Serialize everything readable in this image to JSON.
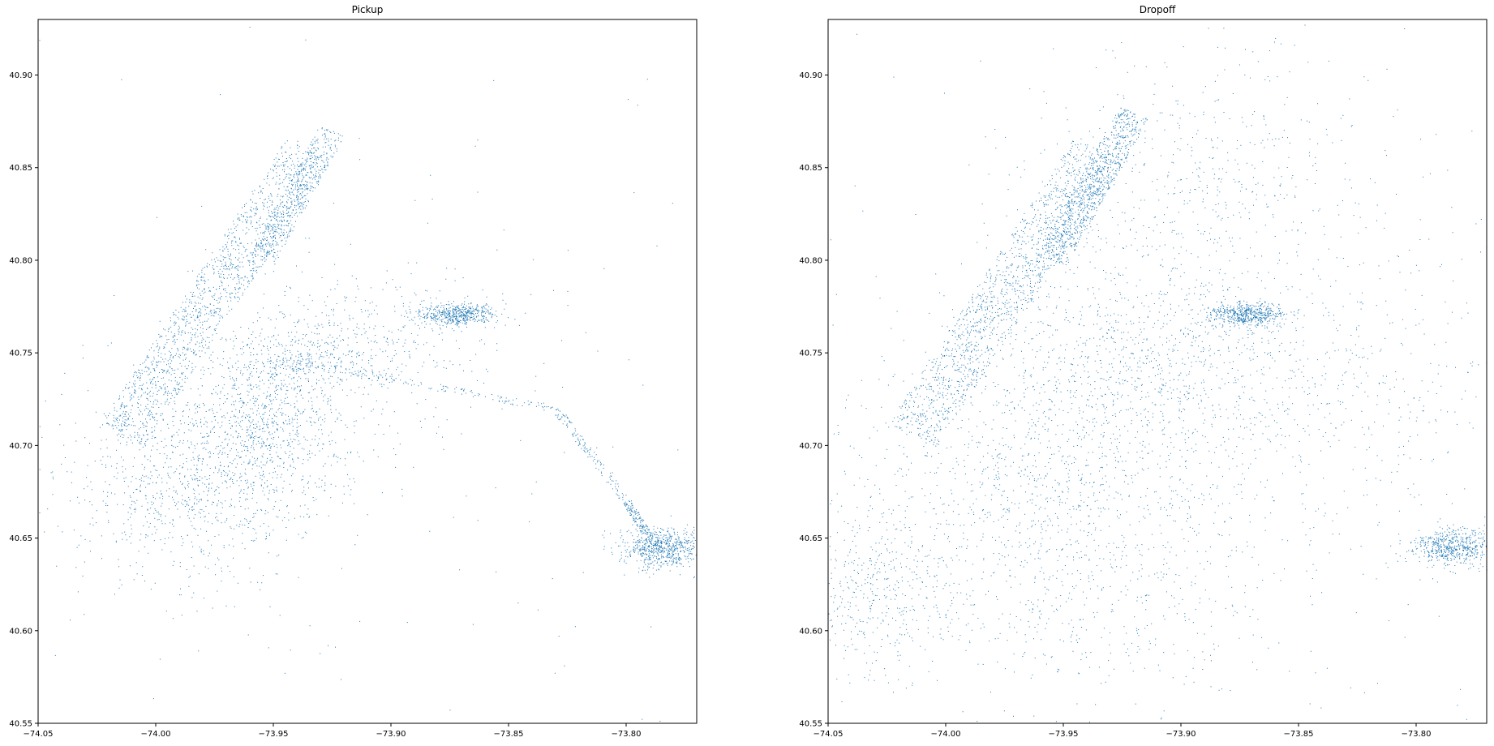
{
  "figure": {
    "background": "#ffffff",
    "point_color": "#1f77b4"
  },
  "chart_data": [
    {
      "type": "scatter",
      "title": "Pickup",
      "xlabel": "",
      "ylabel": "",
      "xlim": [
        -74.05,
        -73.77
      ],
      "ylim": [
        40.55,
        40.93
      ],
      "x_ticks": [
        "−74.05",
        "−74.00",
        "−73.95",
        "−73.90",
        "−73.85",
        "−73.80"
      ],
      "y_ticks": [
        "40.55",
        "40.60",
        "40.65",
        "40.70",
        "40.75",
        "40.80",
        "40.85",
        "40.90"
      ],
      "grid": false,
      "marker": "pixel",
      "series": [
        {
          "color": "#1f77b4",
          "clusters": [
            {
              "region": "manhattan",
              "line": [
                [
                  -74.015,
                  40.705
                ],
                [
                  -73.935,
                  40.86
                ]
              ],
              "halfwidth": 0.011,
              "density": 1.0
            },
            {
              "region": "upper_manhattan",
              "line": [
                [
                  -73.955,
                  40.8
                ],
                [
                  -73.925,
                  40.87
                ]
              ],
              "halfwidth": 0.006,
              "density": 0.35
            },
            {
              "region": "brooklyn_downtown",
              "center": [
                -73.97,
                40.69
              ],
              "spread": [
                0.03,
                0.02
              ],
              "density": 0.5
            },
            {
              "region": "brooklyn_southwest",
              "center": [
                -73.99,
                40.665
              ],
              "spread": [
                0.025,
                0.025
              ],
              "density": 0.3
            },
            {
              "region": "queens_lic",
              "center": [
                -73.94,
                40.745
              ],
              "spread": [
                0.02,
                0.012
              ],
              "density": 0.35
            },
            {
              "region": "queens_astoria",
              "center": [
                -73.915,
                40.76
              ],
              "spread": [
                0.03,
                0.02
              ],
              "density": 0.25
            },
            {
              "region": "williamsburg",
              "center": [
                -73.955,
                40.715
              ],
              "spread": [
                0.015,
                0.015
              ],
              "density": 0.35
            },
            {
              "region": "laguardia",
              "center": [
                -73.872,
                40.771
              ],
              "spread": [
                0.008,
                0.003
              ],
              "density": 0.4
            },
            {
              "region": "jfk",
              "center": [
                -73.785,
                40.645
              ],
              "spread": [
                0.009,
                0.005
              ],
              "density": 0.5
            },
            {
              "region": "van_wyck",
              "line": [
                [
                  -73.94,
                  40.745
                ],
                [
                  -73.83,
                  40.72
                ],
                [
                  -73.8,
                  40.67
                ],
                [
                  -73.79,
                  40.65
                ]
              ],
              "halfwidth": 0.002,
              "density": 0.3
            },
            {
              "region": "sparse",
              "center": [
                -73.91,
                40.71
              ],
              "spread": [
                0.1,
                0.1
              ],
              "density": 0.15
            }
          ]
        }
      ]
    },
    {
      "type": "scatter",
      "title": "Dropoff",
      "xlabel": "",
      "ylabel": "",
      "xlim": [
        -74.05,
        -73.77
      ],
      "ylim": [
        40.55,
        40.93
      ],
      "x_ticks": [
        "−74.05",
        "−74.00",
        "−73.95",
        "−73.90",
        "−73.85",
        "−73.80"
      ],
      "y_ticks": [
        "40.55",
        "40.60",
        "40.65",
        "40.70",
        "40.75",
        "40.80",
        "40.85",
        "40.90"
      ],
      "grid": false,
      "marker": "pixel",
      "series": [
        {
          "color": "#1f77b4",
          "clusters": [
            {
              "region": "manhattan",
              "line": [
                [
                  -74.015,
                  40.705
                ],
                [
                  -73.935,
                  40.86
                ]
              ],
              "halfwidth": 0.012,
              "density": 1.0
            },
            {
              "region": "upper_manhattan",
              "line": [
                [
                  -73.955,
                  40.8
                ],
                [
                  -73.92,
                  40.88
                ]
              ],
              "halfwidth": 0.007,
              "density": 0.6
            },
            {
              "region": "brooklyn",
              "center": [
                -73.96,
                40.68
              ],
              "spread": [
                0.045,
                0.035
              ],
              "density": 0.8
            },
            {
              "region": "queens_west",
              "center": [
                -73.92,
                40.745
              ],
              "spread": [
                0.035,
                0.025
              ],
              "density": 0.6
            },
            {
              "region": "bronx",
              "center": [
                -73.89,
                40.84
              ],
              "spread": [
                0.04,
                0.04
              ],
              "density": 0.45
            },
            {
              "region": "queens_east",
              "center": [
                -73.84,
                40.73
              ],
              "spread": [
                0.05,
                0.04
              ],
              "density": 0.35
            },
            {
              "region": "staten_island",
              "center": [
                -74.03,
                40.62
              ],
              "spread": [
                0.015,
                0.02
              ],
              "density": 0.25
            },
            {
              "region": "south_brooklyn",
              "center": [
                -73.95,
                40.61
              ],
              "spread": [
                0.05,
                0.025
              ],
              "density": 0.3
            },
            {
              "region": "laguardia",
              "center": [
                -73.872,
                40.771
              ],
              "spread": [
                0.008,
                0.003
              ],
              "density": 0.4
            },
            {
              "region": "jfk",
              "center": [
                -73.785,
                40.645
              ],
              "spread": [
                0.009,
                0.005
              ],
              "density": 0.45
            },
            {
              "region": "sparse",
              "center": [
                -73.88,
                40.72
              ],
              "spread": [
                0.12,
                0.12
              ],
              "density": 0.2
            }
          ]
        }
      ]
    }
  ]
}
